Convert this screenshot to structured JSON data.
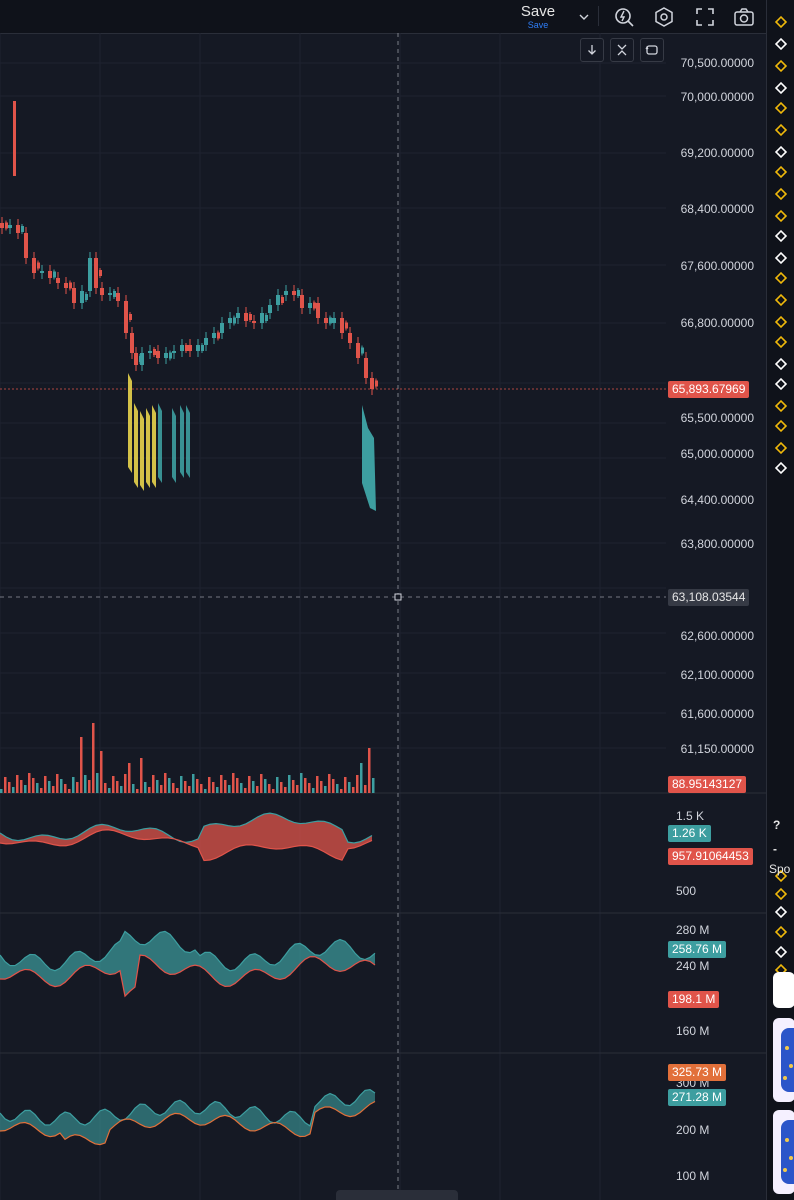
{
  "toolbar": {
    "save_label": "Save",
    "save_sublabel": "Save",
    "icons": [
      "chevron-down-icon",
      "alert-icon",
      "settings-icon",
      "fullscreen-icon",
      "camera-icon"
    ]
  },
  "chart_controls": [
    "scroll-down-icon",
    "collapse-icon",
    "reset-icon"
  ],
  "price_axis": {
    "labels": [
      "70,500.00000",
      "70,000.00000",
      "69,200.00000",
      "68,400.00000",
      "67,600.00000",
      "66,800.00000",
      "65,500.00000",
      "65,000.00000",
      "64,400.00000",
      "63,800.00000",
      "62,600.00000",
      "62,100.00000",
      "61,600.00000",
      "61,150.00000"
    ],
    "last_price": "65,893.67969",
    "crosshair_price": "63,108.03544",
    "volume_value": "88.95143127"
  },
  "indicator1": {
    "axis": [
      "1.5 K",
      "500"
    ],
    "tag_teal": "1.26 K",
    "tag_red": "957.91064453"
  },
  "indicator2": {
    "axis": [
      "280 M",
      "240 M",
      "160 M"
    ],
    "tag_teal": "258.76 M",
    "tag_red": "198.1 M"
  },
  "indicator3": {
    "axis": [
      "300 M",
      "200 M",
      "100 M"
    ],
    "tag_orange": "325.73 M",
    "tag_teal": "271.28 M"
  },
  "right_panel": {
    "question_mark": "?",
    "minus": "-",
    "section_label": "Spo"
  },
  "colors": {
    "background": "#151924",
    "up": "#3d9ea0",
    "down": "#e0544a",
    "yellow": "#e8d44d",
    "grid": "#1f2330"
  }
}
